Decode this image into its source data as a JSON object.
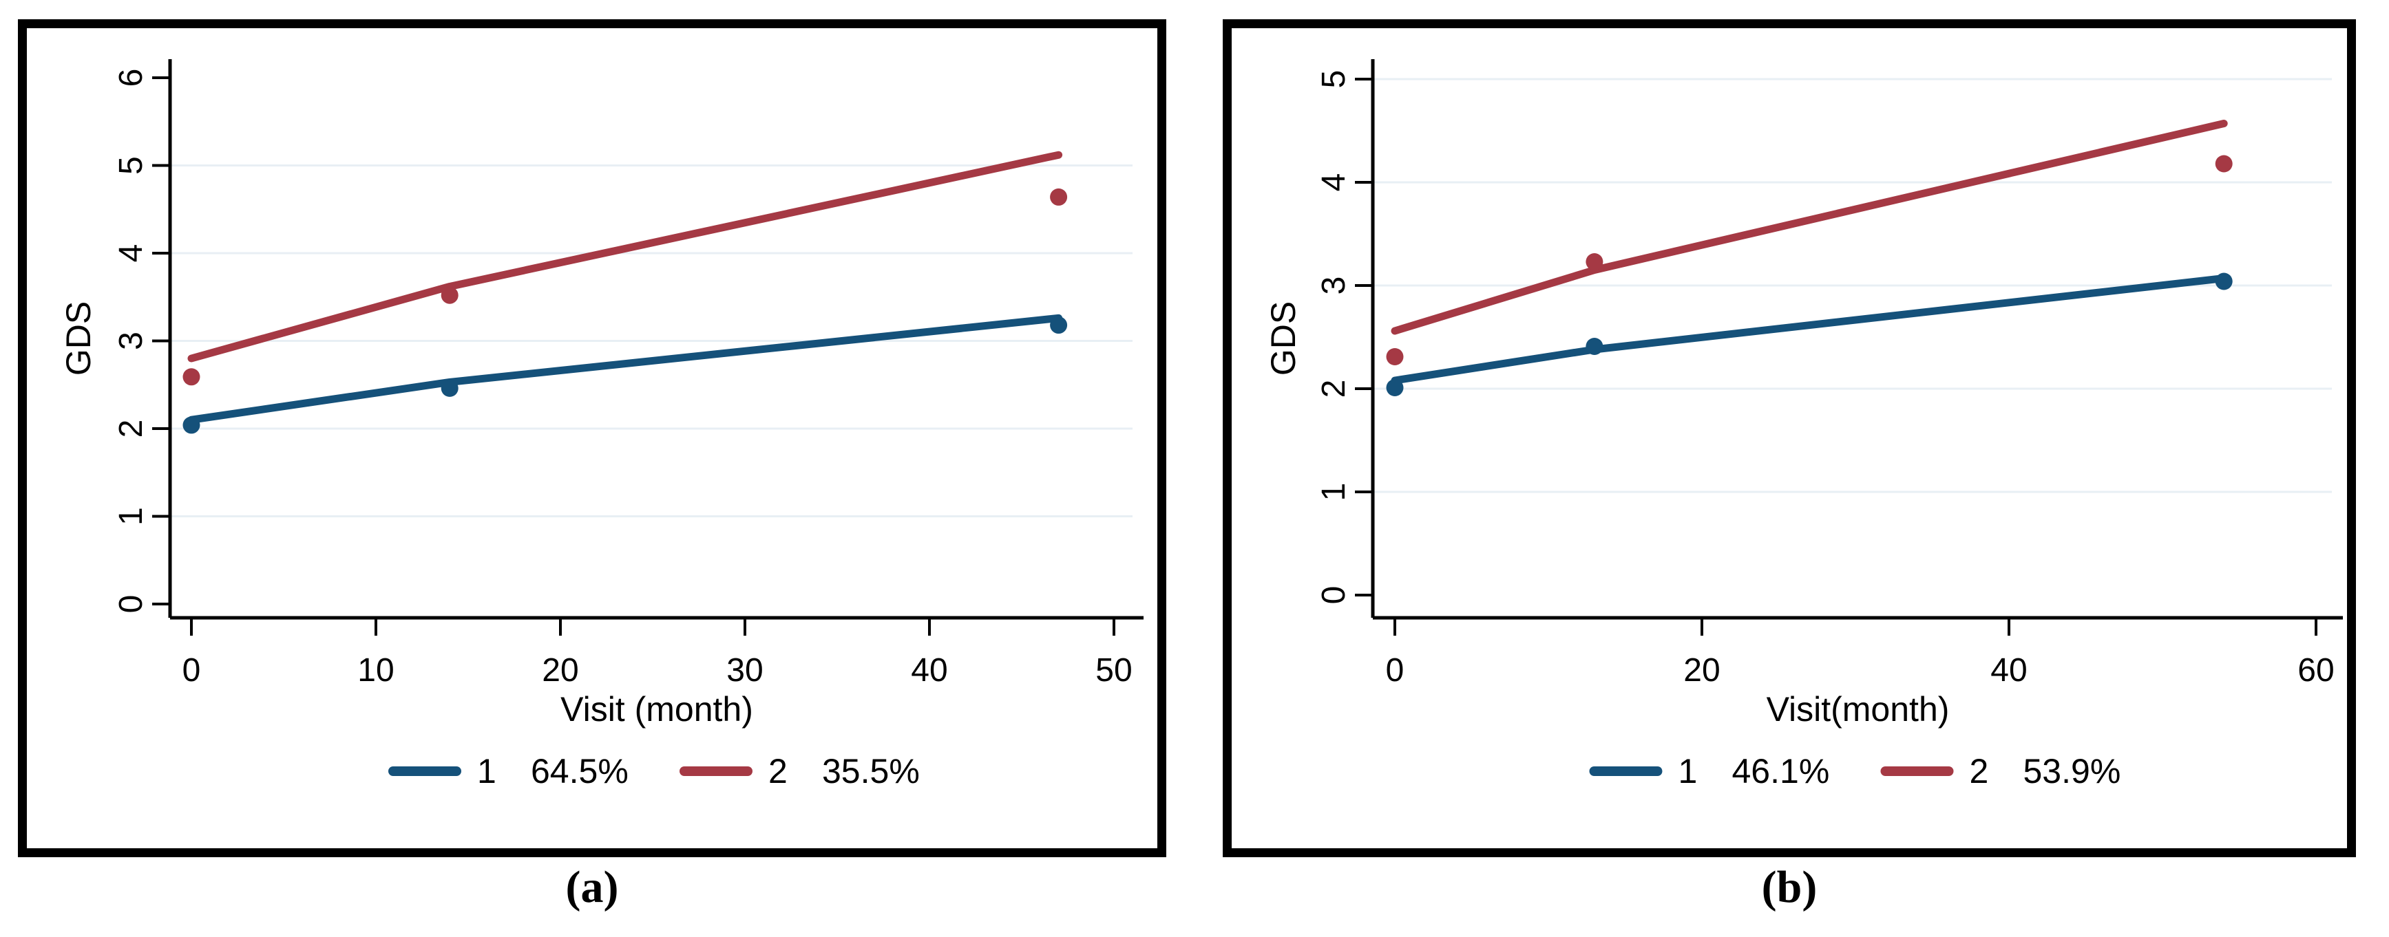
{
  "figure": {
    "description_labels": {
      "y_axis": "GDS"
    }
  },
  "captions": {
    "left": "(a)",
    "right": "(b)"
  },
  "colors": {
    "class1": "#15517a",
    "class2": "#a53944",
    "grid": "#e8eff4",
    "axis": "#000000",
    "panel_border": "#000000",
    "background": "#ffffff"
  },
  "chart_data": [
    {
      "panel": "a",
      "type": "line",
      "title": "",
      "xlabel": "Visit (month)",
      "ylabel": "GDS",
      "xlim": [
        0,
        50
      ],
      "ylim": [
        0,
        6
      ],
      "xticks": [
        0,
        10,
        20,
        30,
        40,
        50
      ],
      "yticks": [
        0,
        1,
        2,
        3,
        4,
        5,
        6
      ],
      "grid_yticks": [
        1,
        2,
        3,
        4,
        5
      ],
      "grid": "horizontal",
      "legend_position": "bottom-center",
      "series": [
        {
          "name": "1",
          "share": "64.5%",
          "color_key": "class1",
          "fit_line": [
            [
              0,
              2.1
            ],
            [
              14,
              2.53
            ],
            [
              47,
              3.26
            ]
          ],
          "observed_points": [
            [
              0,
              2.04
            ],
            [
              14,
              2.46
            ],
            [
              47,
              3.18
            ]
          ]
        },
        {
          "name": "2",
          "share": "35.5%",
          "color_key": "class2",
          "fit_line": [
            [
              0,
              2.8
            ],
            [
              14,
              3.62
            ],
            [
              47,
              5.12
            ]
          ],
          "observed_points": [
            [
              0,
              2.59
            ],
            [
              14,
              3.52
            ],
            [
              47,
              4.64
            ]
          ]
        }
      ]
    },
    {
      "panel": "b",
      "type": "line",
      "title": "",
      "xlabel": "Visit(month)",
      "ylabel": "GDS",
      "xlim": [
        0,
        60
      ],
      "ylim": [
        0,
        5
      ],
      "xticks": [
        0,
        20,
        40,
        60
      ],
      "yticks": [
        0,
        1,
        2,
        3,
        4,
        5
      ],
      "grid_yticks": [
        1,
        2,
        3,
        4,
        5
      ],
      "grid": "horizontal",
      "legend_position": "bottom-center",
      "series": [
        {
          "name": "1",
          "share": "46.1%",
          "color_key": "class1",
          "fit_line": [
            [
              0,
              2.08
            ],
            [
              13,
              2.38
            ],
            [
              54,
              3.07
            ]
          ],
          "observed_points": [
            [
              0,
              2.01
            ],
            [
              13,
              2.41
            ],
            [
              54,
              3.04
            ]
          ]
        },
        {
          "name": "2",
          "share": "53.9%",
          "color_key": "class2",
          "fit_line": [
            [
              0,
              2.56
            ],
            [
              13,
              3.15
            ],
            [
              54,
              4.57
            ]
          ],
          "observed_points": [
            [
              0,
              2.31
            ],
            [
              13,
              3.23
            ],
            [
              54,
              4.18
            ]
          ]
        }
      ]
    }
  ]
}
